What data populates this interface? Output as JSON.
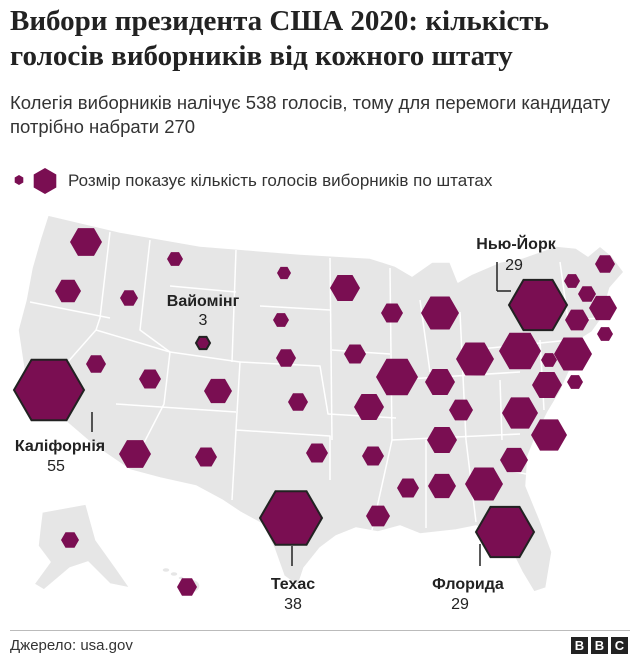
{
  "title": "Вибори президента США 2020: кількість голосів виборників від кожного штату",
  "subtitle": "Колегія виборників налічує 538 голосів, тому для перемоги кандидату потрібно набрати 270",
  "legend": {
    "text": "Розмір показує кількість голосів виборників по штатах"
  },
  "source": "Джерело: usa.gov",
  "brand": [
    "B",
    "B",
    "C"
  ],
  "colors": {
    "hexagon": "#7a0e52",
    "hexagon_highlight_border": "#222222",
    "land": "#e6e6e6",
    "border": "#ffffff"
  },
  "labels": [
    {
      "name": "Каліфорнія",
      "votes": "55"
    },
    {
      "name": "Вайомінг",
      "votes": "3"
    },
    {
      "name": "Техас",
      "votes": "38"
    },
    {
      "name": "Флорида",
      "votes": "29"
    },
    {
      "name": "Нью-Йорк",
      "votes": "29"
    }
  ],
  "chart_data": {
    "type": "map",
    "unit": "electoral votes",
    "total": 538,
    "to_win": 270,
    "states": [
      {
        "name": "Каліфорнія",
        "votes": 55,
        "labeled": true
      },
      {
        "name": "Техас",
        "votes": 38,
        "labeled": true
      },
      {
        "name": "Флорида",
        "votes": 29,
        "labeled": true
      },
      {
        "name": "Нью-Йорк",
        "votes": 29,
        "labeled": true
      },
      {
        "name": "Вайомінг",
        "votes": 3,
        "labeled": true
      }
    ]
  }
}
